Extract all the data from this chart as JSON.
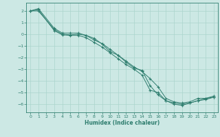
{
  "xlabel": "Humidex (Indice chaleur)",
  "background_color": "#cce8e4",
  "grid_color": "#aad4cc",
  "line_color": "#2e7d6e",
  "spine_color": "#2e7d6e",
  "xlim": [
    -0.5,
    23.5
  ],
  "ylim": [
    -6.7,
    2.7
  ],
  "xticks": [
    0,
    1,
    2,
    3,
    4,
    5,
    6,
    7,
    8,
    9,
    10,
    11,
    12,
    13,
    14,
    15,
    16,
    17,
    18,
    19,
    20,
    21,
    22,
    23
  ],
  "yticks": [
    -6,
    -5,
    -4,
    -3,
    -2,
    -1,
    0,
    1,
    2
  ],
  "line1": {
    "x": [
      0,
      1,
      3,
      4,
      5,
      6,
      7,
      8,
      9,
      10,
      11,
      12,
      13,
      14,
      15,
      16,
      17,
      18,
      19,
      20,
      21,
      22,
      23
    ],
    "y": [
      2.0,
      2.2,
      0.5,
      0.1,
      0.1,
      0.1,
      -0.1,
      -0.5,
      -0.8,
      -1.3,
      -1.8,
      -2.3,
      -2.8,
      -3.2,
      -3.8,
      -4.5,
      -5.5,
      -5.8,
      -5.9,
      -5.8,
      -5.5,
      -5.5,
      -5.4
    ]
  },
  "line2": {
    "x": [
      0,
      1,
      3,
      4,
      5,
      6,
      7,
      8,
      9,
      10,
      11,
      12,
      13,
      14,
      15,
      16,
      17,
      18,
      19,
      20,
      21,
      22,
      23
    ],
    "y": [
      2.0,
      2.1,
      0.3,
      -0.05,
      -0.1,
      -0.1,
      -0.3,
      -0.7,
      -1.1,
      -1.6,
      -2.1,
      -2.6,
      -3.0,
      -3.5,
      -4.8,
      -5.0,
      -5.7,
      -5.9,
      -6.0,
      -5.9,
      -5.7,
      -5.6,
      -5.4
    ]
  },
  "line3": {
    "x": [
      0,
      1,
      3,
      4,
      5,
      6,
      7,
      8,
      9,
      10,
      11,
      12,
      13,
      14,
      15,
      16,
      17,
      18,
      19,
      20,
      21,
      22,
      23
    ],
    "y": [
      2.0,
      2.0,
      0.4,
      0.0,
      -0.05,
      0.0,
      -0.1,
      -0.35,
      -0.85,
      -1.5,
      -1.8,
      -2.4,
      -2.9,
      -3.1,
      -4.4,
      -5.2,
      -5.7,
      -6.0,
      -6.1,
      -5.9,
      -5.7,
      -5.5,
      -5.3
    ]
  }
}
